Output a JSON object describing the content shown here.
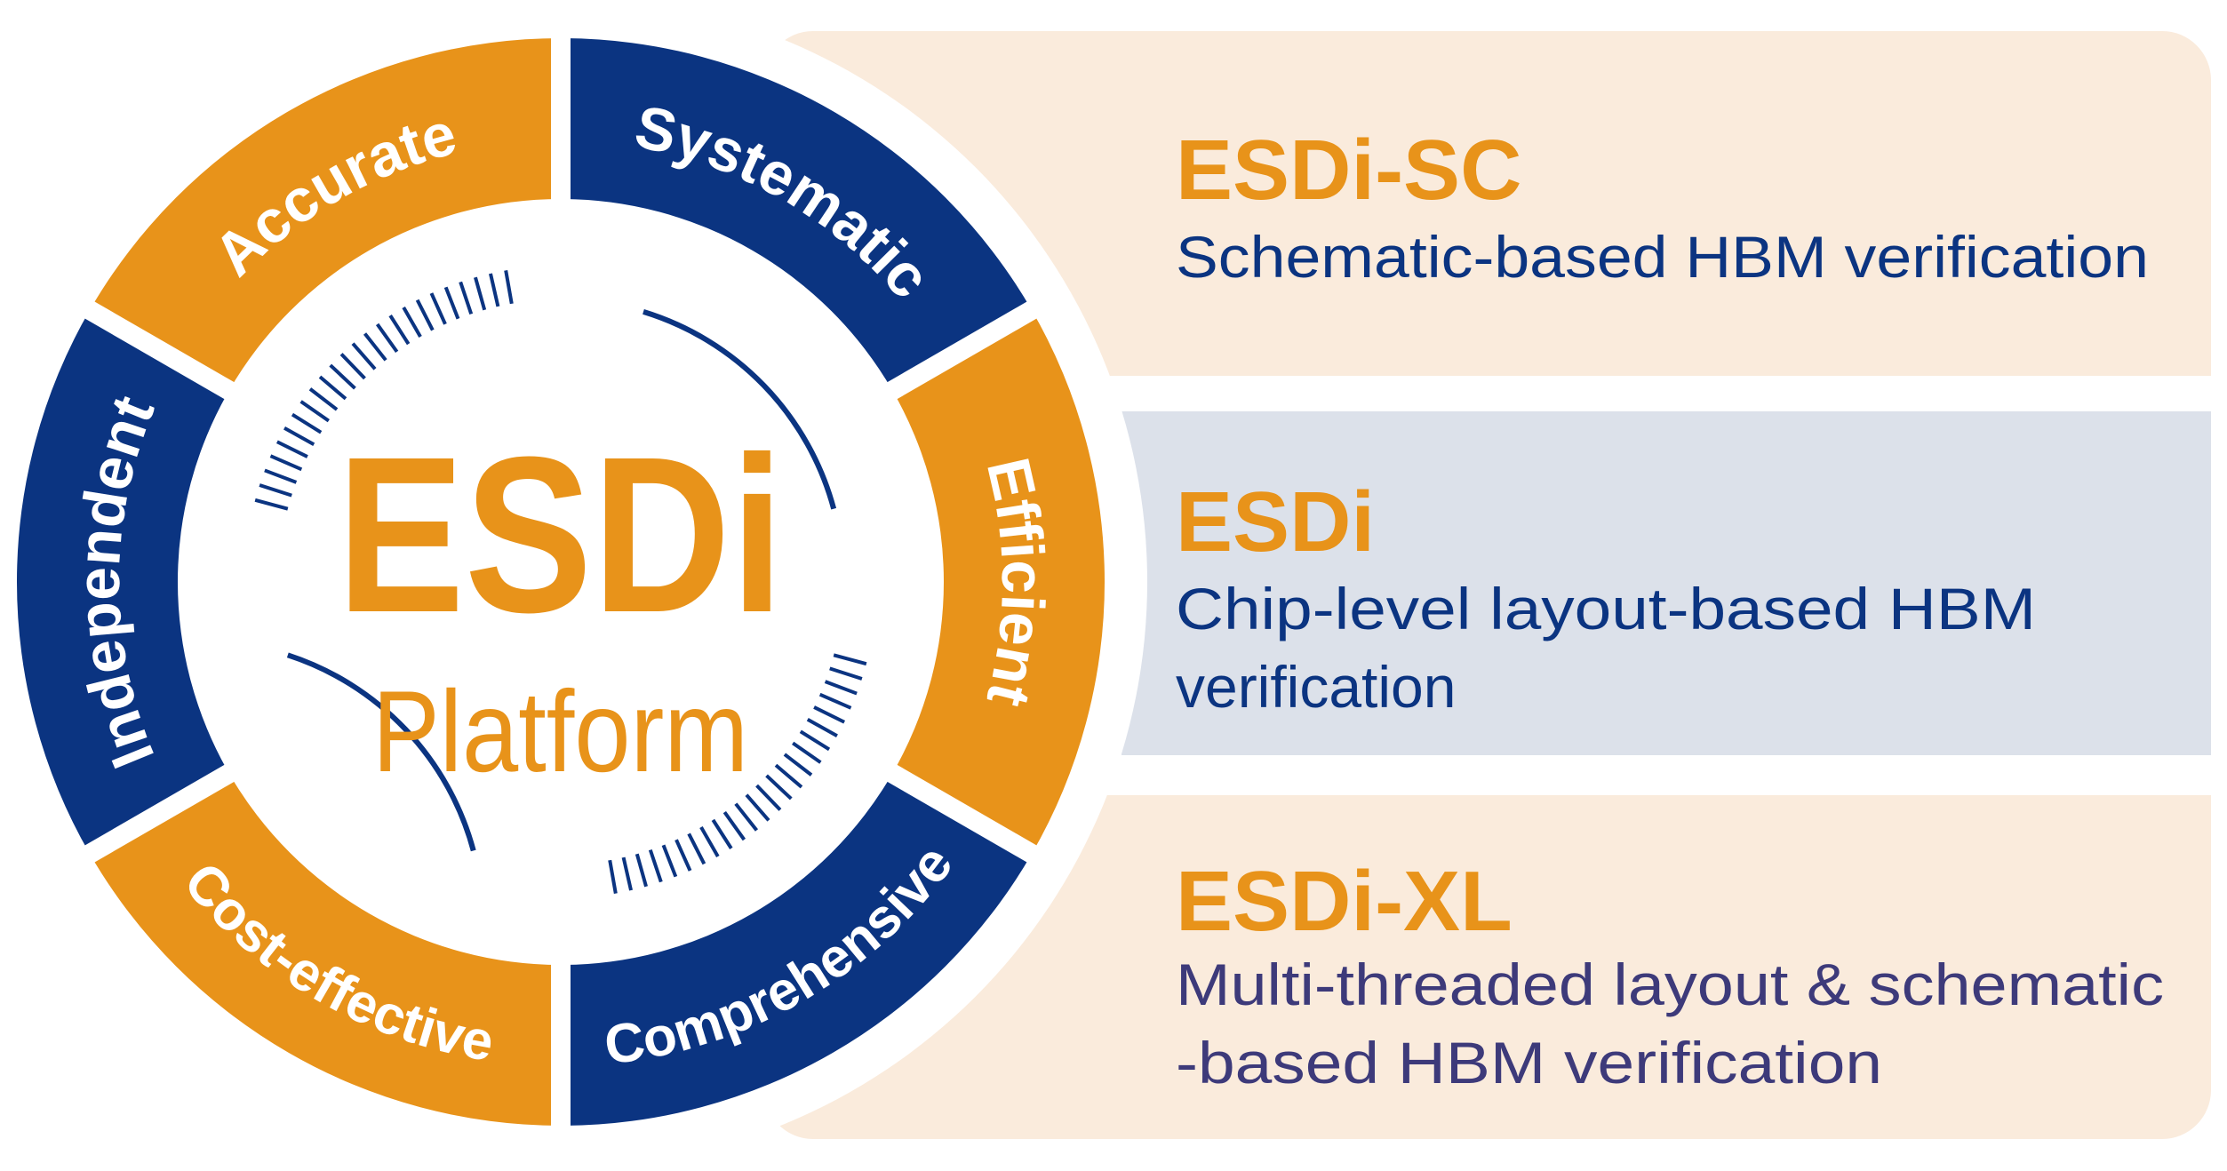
{
  "colors": {
    "orange": "#E8931A",
    "blue": "#0B3481",
    "purple_text": "#3D3A7A",
    "panel_beige": "#FAEBDC",
    "panel_blue": "#DCE1EA",
    "background": "#FFFFFF"
  },
  "center": {
    "title": "ESDi",
    "subtitle": "Platform"
  },
  "ring_segments": [
    {
      "label": "Accurate",
      "color": "orange"
    },
    {
      "label": "Independent",
      "color": "blue"
    },
    {
      "label": "Cost-effective",
      "color": "orange"
    },
    {
      "label": "Comprehensive",
      "color": "blue"
    },
    {
      "label": "Efficient",
      "color": "orange"
    },
    {
      "label": "Systematic",
      "color": "blue"
    }
  ],
  "panels": [
    {
      "title": "ESDi-SC",
      "lines": [
        "Schematic-based HBM verification"
      ]
    },
    {
      "title": "ESDi",
      "lines": [
        "Chip-level layout-based HBM",
        "verification"
      ]
    },
    {
      "title": "ESDi-XL",
      "lines": [
        "Multi-threaded layout & schematic",
        "-based HBM verification"
      ]
    }
  ]
}
